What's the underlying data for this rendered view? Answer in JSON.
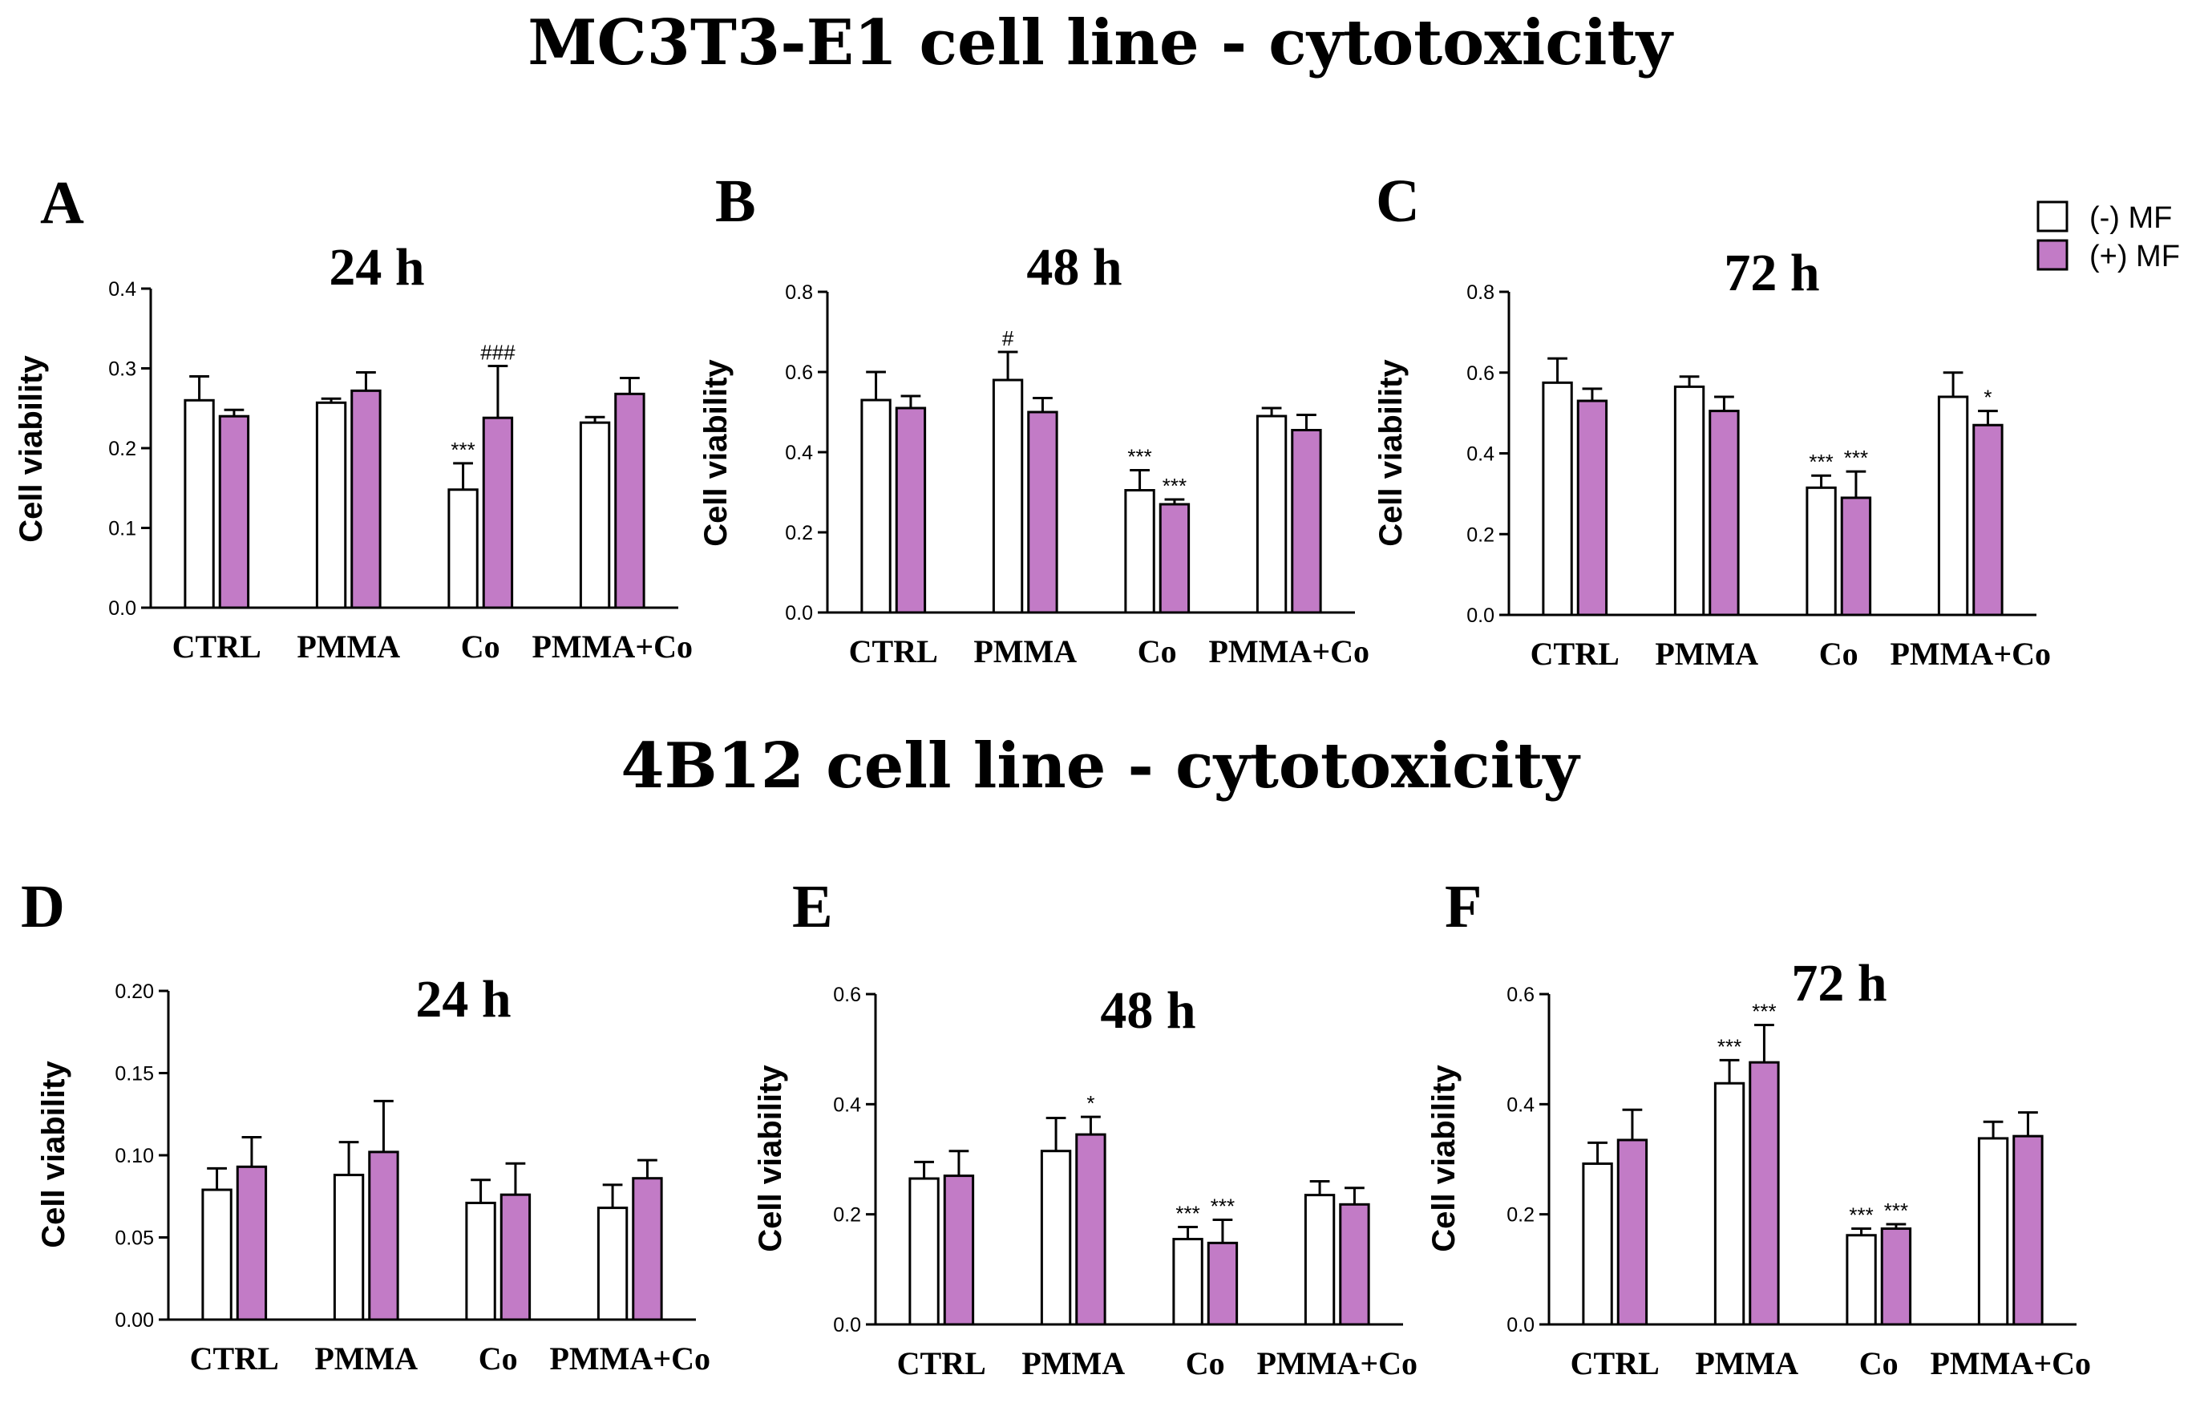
{
  "section_titles": [
    "MC3T3-E1 cell line - cytotoxicity",
    "4B12 cell line -  cytotoxicity"
  ],
  "legend": {
    "items": [
      {
        "label": "(-) MF",
        "color": "#ffffff"
      },
      {
        "label": "(+) MF",
        "color": "#c27bc6"
      }
    ]
  },
  "colors": {
    "minus_mf": "#ffffff",
    "plus_mf": "#c27bc6",
    "stroke": "#000000"
  },
  "chart_data": [
    {
      "panel": "A",
      "type": "bar",
      "title": "24 h",
      "ylabel": "Cell viability",
      "xlabel": "",
      "ylim": [
        0,
        0.4
      ],
      "yticks": [
        "0.0",
        "0.1",
        "0.2",
        "0.3",
        "0.4"
      ],
      "categories": [
        "CTRL",
        "PMMA",
        "Co",
        "PMMA+Co"
      ],
      "series": [
        {
          "name": "(-) MF",
          "values": [
            0.26,
            0.257,
            0.148,
            0.232
          ],
          "errors": [
            0.03,
            0.005,
            0.033,
            0.007
          ],
          "annotations": [
            "",
            "",
            "***",
            ""
          ]
        },
        {
          "name": "(+) MF",
          "values": [
            0.24,
            0.272,
            0.238,
            0.268
          ],
          "errors": [
            0.008,
            0.023,
            0.065,
            0.02
          ],
          "annotations": [
            "",
            "",
            "###",
            ""
          ]
        }
      ]
    },
    {
      "panel": "B",
      "type": "bar",
      "title": "48 h",
      "ylabel": "Cell viability",
      "xlabel": "",
      "ylim": [
        0,
        0.8
      ],
      "yticks": [
        "0.0",
        "0.2",
        "0.4",
        "0.6",
        "0.8"
      ],
      "categories": [
        "CTRL",
        "PMMA",
        "Co",
        "PMMA+Co"
      ],
      "series": [
        {
          "name": "(-) MF",
          "values": [
            0.53,
            0.58,
            0.305,
            0.49
          ],
          "errors": [
            0.07,
            0.07,
            0.05,
            0.02
          ],
          "annotations": [
            "",
            "#",
            "***",
            ""
          ]
        },
        {
          "name": "(+) MF",
          "values": [
            0.51,
            0.5,
            0.27,
            0.455
          ],
          "errors": [
            0.03,
            0.035,
            0.012,
            0.038
          ],
          "annotations": [
            "",
            "",
            "***",
            ""
          ]
        }
      ]
    },
    {
      "panel": "C",
      "type": "bar",
      "title": "72 h",
      "ylabel": "Cell viability",
      "xlabel": "",
      "ylim": [
        0,
        0.8
      ],
      "yticks": [
        "0.0",
        "0.2",
        "0.4",
        "0.6",
        "0.8"
      ],
      "categories": [
        "CTRL",
        "PMMA",
        "Co",
        "PMMA+Co"
      ],
      "series": [
        {
          "name": "(-) MF",
          "values": [
            0.575,
            0.565,
            0.315,
            0.54
          ],
          "errors": [
            0.06,
            0.025,
            0.03,
            0.06
          ],
          "annotations": [
            "",
            "",
            "***",
            ""
          ]
        },
        {
          "name": "(+) MF",
          "values": [
            0.53,
            0.505,
            0.29,
            0.47
          ],
          "errors": [
            0.03,
            0.035,
            0.065,
            0.035
          ],
          "annotations": [
            "",
            "",
            "***",
            "*"
          ]
        }
      ]
    },
    {
      "panel": "D",
      "type": "bar",
      "title": "24 h",
      "ylabel": "Cell viability",
      "xlabel": "",
      "ylim": [
        0,
        0.2
      ],
      "yticks": [
        "0.00",
        "0.05",
        "0.10",
        "0.15",
        "0.20"
      ],
      "categories": [
        "CTRL",
        "PMMA",
        "Co",
        "PMMA+Co"
      ],
      "series": [
        {
          "name": "(-) MF",
          "values": [
            0.079,
            0.088,
            0.071,
            0.068
          ],
          "errors": [
            0.013,
            0.02,
            0.014,
            0.014
          ],
          "annotations": [
            "",
            "",
            "",
            ""
          ]
        },
        {
          "name": "(+) MF",
          "values": [
            0.093,
            0.102,
            0.076,
            0.086
          ],
          "errors": [
            0.018,
            0.031,
            0.019,
            0.011
          ],
          "annotations": [
            "",
            "",
            "",
            ""
          ]
        }
      ]
    },
    {
      "panel": "E",
      "type": "bar",
      "title": "48 h",
      "ylabel": "Cell viability",
      "xlabel": "",
      "ylim": [
        0,
        0.6
      ],
      "yticks": [
        "0.0",
        "0.2",
        "0.4",
        "0.6"
      ],
      "categories": [
        "CTRL",
        "PMMA",
        "Co",
        "PMMA+Co"
      ],
      "series": [
        {
          "name": "(-) MF",
          "values": [
            0.265,
            0.315,
            0.155,
            0.235
          ],
          "errors": [
            0.03,
            0.06,
            0.022,
            0.025
          ],
          "annotations": [
            "",
            "",
            "***",
            ""
          ]
        },
        {
          "name": "(+) MF",
          "values": [
            0.27,
            0.345,
            0.148,
            0.218
          ],
          "errors": [
            0.045,
            0.032,
            0.042,
            0.03
          ],
          "annotations": [
            "",
            "*",
            "***",
            ""
          ]
        }
      ]
    },
    {
      "panel": "F",
      "type": "bar",
      "title": "72 h",
      "ylabel": "Cell viability",
      "xlabel": "",
      "ylim": [
        0,
        0.6
      ],
      "yticks": [
        "0.0",
        "0.2",
        "0.4",
        "0.6"
      ],
      "categories": [
        "CTRL",
        "PMMA",
        "Co",
        "PMMA+Co"
      ],
      "series": [
        {
          "name": "(-) MF",
          "values": [
            0.292,
            0.438,
            0.162,
            0.338
          ],
          "errors": [
            0.038,
            0.042,
            0.012,
            0.03
          ],
          "annotations": [
            "",
            "***",
            "***",
            ""
          ]
        },
        {
          "name": "(+) MF",
          "values": [
            0.335,
            0.476,
            0.174,
            0.342
          ],
          "errors": [
            0.055,
            0.068,
            0.008,
            0.043
          ],
          "annotations": [
            "",
            "***",
            "***",
            ""
          ]
        }
      ]
    }
  ]
}
